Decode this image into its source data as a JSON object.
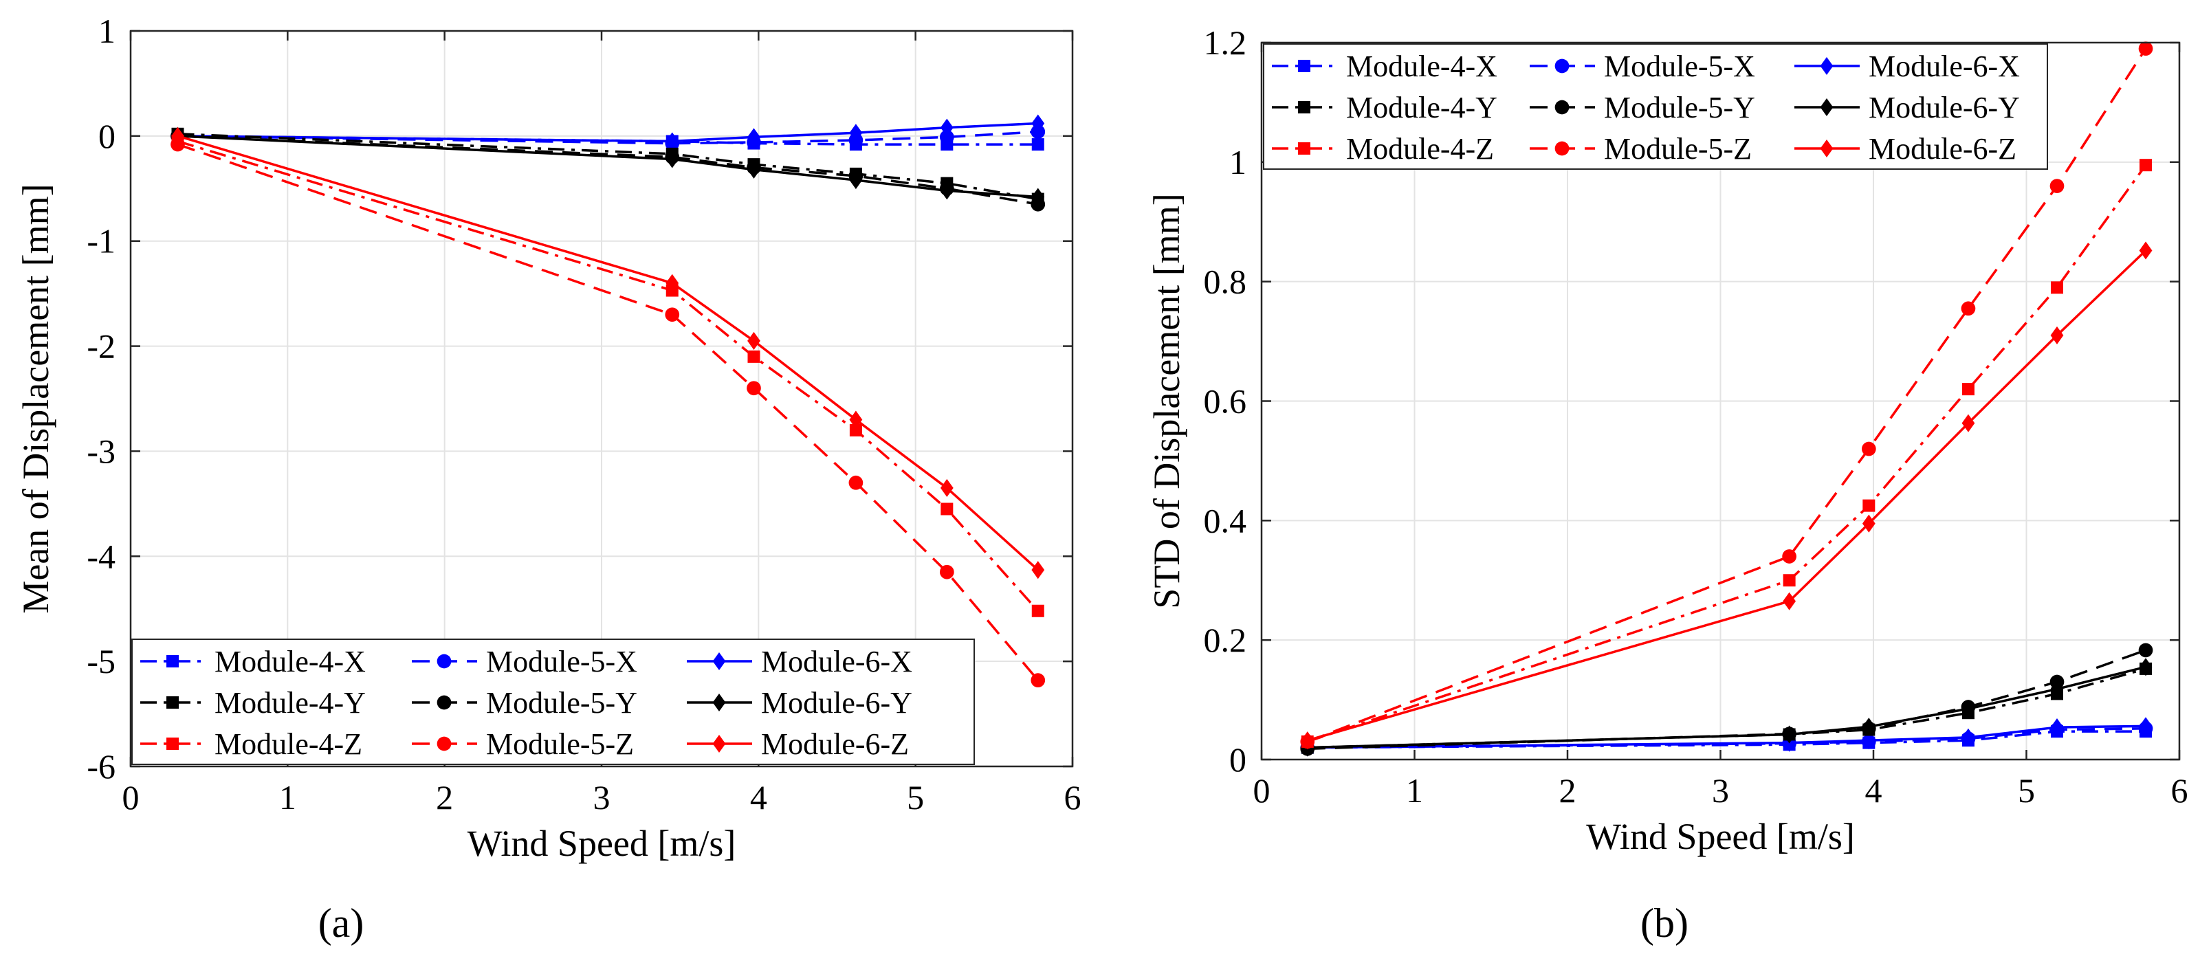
{
  "figure": {
    "captions": [
      "(a)",
      "(b)"
    ]
  },
  "colors": {
    "X": "#0000ff",
    "Y": "#000000",
    "Z": "#ff0000"
  },
  "chart_data": [
    {
      "type": "line",
      "id": "a",
      "caption": "(a)",
      "xlabel": "Wind Speed [m/s]",
      "ylabel": "Mean of Displacement [mm]",
      "xlim": [
        0,
        6
      ],
      "ylim": [
        -6,
        1
      ],
      "xticks": [
        0,
        1,
        2,
        3,
        4,
        5,
        6
      ],
      "yticks": [
        -6,
        -5,
        -4,
        -3,
        -2,
        -1,
        0,
        1
      ],
      "grid": true,
      "legend_position": "bottom-left",
      "x": [
        0.3,
        3.45,
        3.97,
        4.62,
        5.2,
        5.78
      ],
      "series": [
        {
          "name": "Module-4-X",
          "color": "#0000ff",
          "dash": "dashdot",
          "marker": "square",
          "values": [
            0.0,
            -0.05,
            -0.07,
            -0.08,
            -0.08,
            -0.08
          ]
        },
        {
          "name": "Module-5-X",
          "color": "#0000ff",
          "dash": "dashed",
          "marker": "circle",
          "values": [
            0.0,
            -0.07,
            -0.06,
            -0.04,
            -0.01,
            0.04
          ]
        },
        {
          "name": "Module-6-X",
          "color": "#0000ff",
          "dash": "solid",
          "marker": "diamond",
          "values": [
            0.0,
            -0.05,
            -0.01,
            0.03,
            0.08,
            0.12
          ]
        },
        {
          "name": "Module-4-Y",
          "color": "#000000",
          "dash": "dashdot",
          "marker": "square",
          "values": [
            0.02,
            -0.17,
            -0.27,
            -0.36,
            -0.45,
            -0.6
          ]
        },
        {
          "name": "Module-5-Y",
          "color": "#000000",
          "dash": "dashed",
          "marker": "circle",
          "values": [
            0.0,
            -0.2,
            -0.3,
            -0.38,
            -0.5,
            -0.65
          ]
        },
        {
          "name": "Module-6-Y",
          "color": "#000000",
          "dash": "solid",
          "marker": "diamond",
          "values": [
            0.0,
            -0.22,
            -0.32,
            -0.42,
            -0.52,
            -0.58
          ]
        },
        {
          "name": "Module-4-Z",
          "color": "#ff0000",
          "dash": "dashdot",
          "marker": "square",
          "values": [
            -0.05,
            -1.47,
            -2.1,
            -2.8,
            -3.55,
            -4.52
          ]
        },
        {
          "name": "Module-5-Z",
          "color": "#ff0000",
          "dash": "dashed",
          "marker": "circle",
          "values": [
            -0.08,
            -1.7,
            -2.4,
            -3.3,
            -4.15,
            -5.18
          ]
        },
        {
          "name": "Module-6-Z",
          "color": "#ff0000",
          "dash": "solid",
          "marker": "diamond",
          "values": [
            0.0,
            -1.4,
            -1.95,
            -2.7,
            -3.35,
            -4.13
          ]
        }
      ]
    },
    {
      "type": "line",
      "id": "b",
      "caption": "(b)",
      "xlabel": "Wind Speed [m/s]",
      "ylabel": "STD of Displacement [mm]",
      "xlim": [
        0,
        6
      ],
      "ylim": [
        0,
        1.2
      ],
      "xticks": [
        0,
        1,
        2,
        3,
        4,
        5,
        6
      ],
      "yticks": [
        0,
        0.2,
        0.4,
        0.6,
        0.8,
        1,
        1.2
      ],
      "grid": true,
      "legend_position": "top-left",
      "x": [
        0.3,
        3.45,
        3.97,
        4.62,
        5.2,
        5.78
      ],
      "series": [
        {
          "name": "Module-4-X",
          "color": "#0000ff",
          "dash": "dashdot",
          "marker": "square",
          "values": [
            0.02,
            0.025,
            0.028,
            0.032,
            0.047,
            0.047
          ]
        },
        {
          "name": "Module-5-X",
          "color": "#0000ff",
          "dash": "dashed",
          "marker": "circle",
          "values": [
            0.02,
            0.027,
            0.03,
            0.035,
            0.05,
            0.052
          ]
        },
        {
          "name": "Module-6-X",
          "color": "#0000ff",
          "dash": "solid",
          "marker": "diamond",
          "values": [
            0.02,
            0.028,
            0.032,
            0.037,
            0.054,
            0.056
          ]
        },
        {
          "name": "Module-4-Y",
          "color": "#000000",
          "dash": "dashdot",
          "marker": "square",
          "values": [
            0.02,
            0.042,
            0.05,
            0.078,
            0.11,
            0.152
          ]
        },
        {
          "name": "Module-5-Y",
          "color": "#000000",
          "dash": "dashed",
          "marker": "circle",
          "values": [
            0.018,
            0.043,
            0.052,
            0.088,
            0.13,
            0.183
          ]
        },
        {
          "name": "Module-6-Y",
          "color": "#000000",
          "dash": "solid",
          "marker": "diamond",
          "values": [
            0.02,
            0.042,
            0.055,
            0.085,
            0.118,
            0.155
          ]
        },
        {
          "name": "Module-4-Z",
          "color": "#ff0000",
          "dash": "dashdot",
          "marker": "square",
          "values": [
            0.03,
            0.3,
            0.425,
            0.62,
            0.79,
            0.995
          ]
        },
        {
          "name": "Module-5-Z",
          "color": "#ff0000",
          "dash": "dashed",
          "marker": "circle",
          "values": [
            0.03,
            0.34,
            0.52,
            0.755,
            0.96,
            1.19
          ]
        },
        {
          "name": "Module-6-Z",
          "color": "#ff0000",
          "dash": "solid",
          "marker": "diamond",
          "values": [
            0.032,
            0.265,
            0.395,
            0.563,
            0.71,
            0.852
          ]
        }
      ]
    }
  ]
}
